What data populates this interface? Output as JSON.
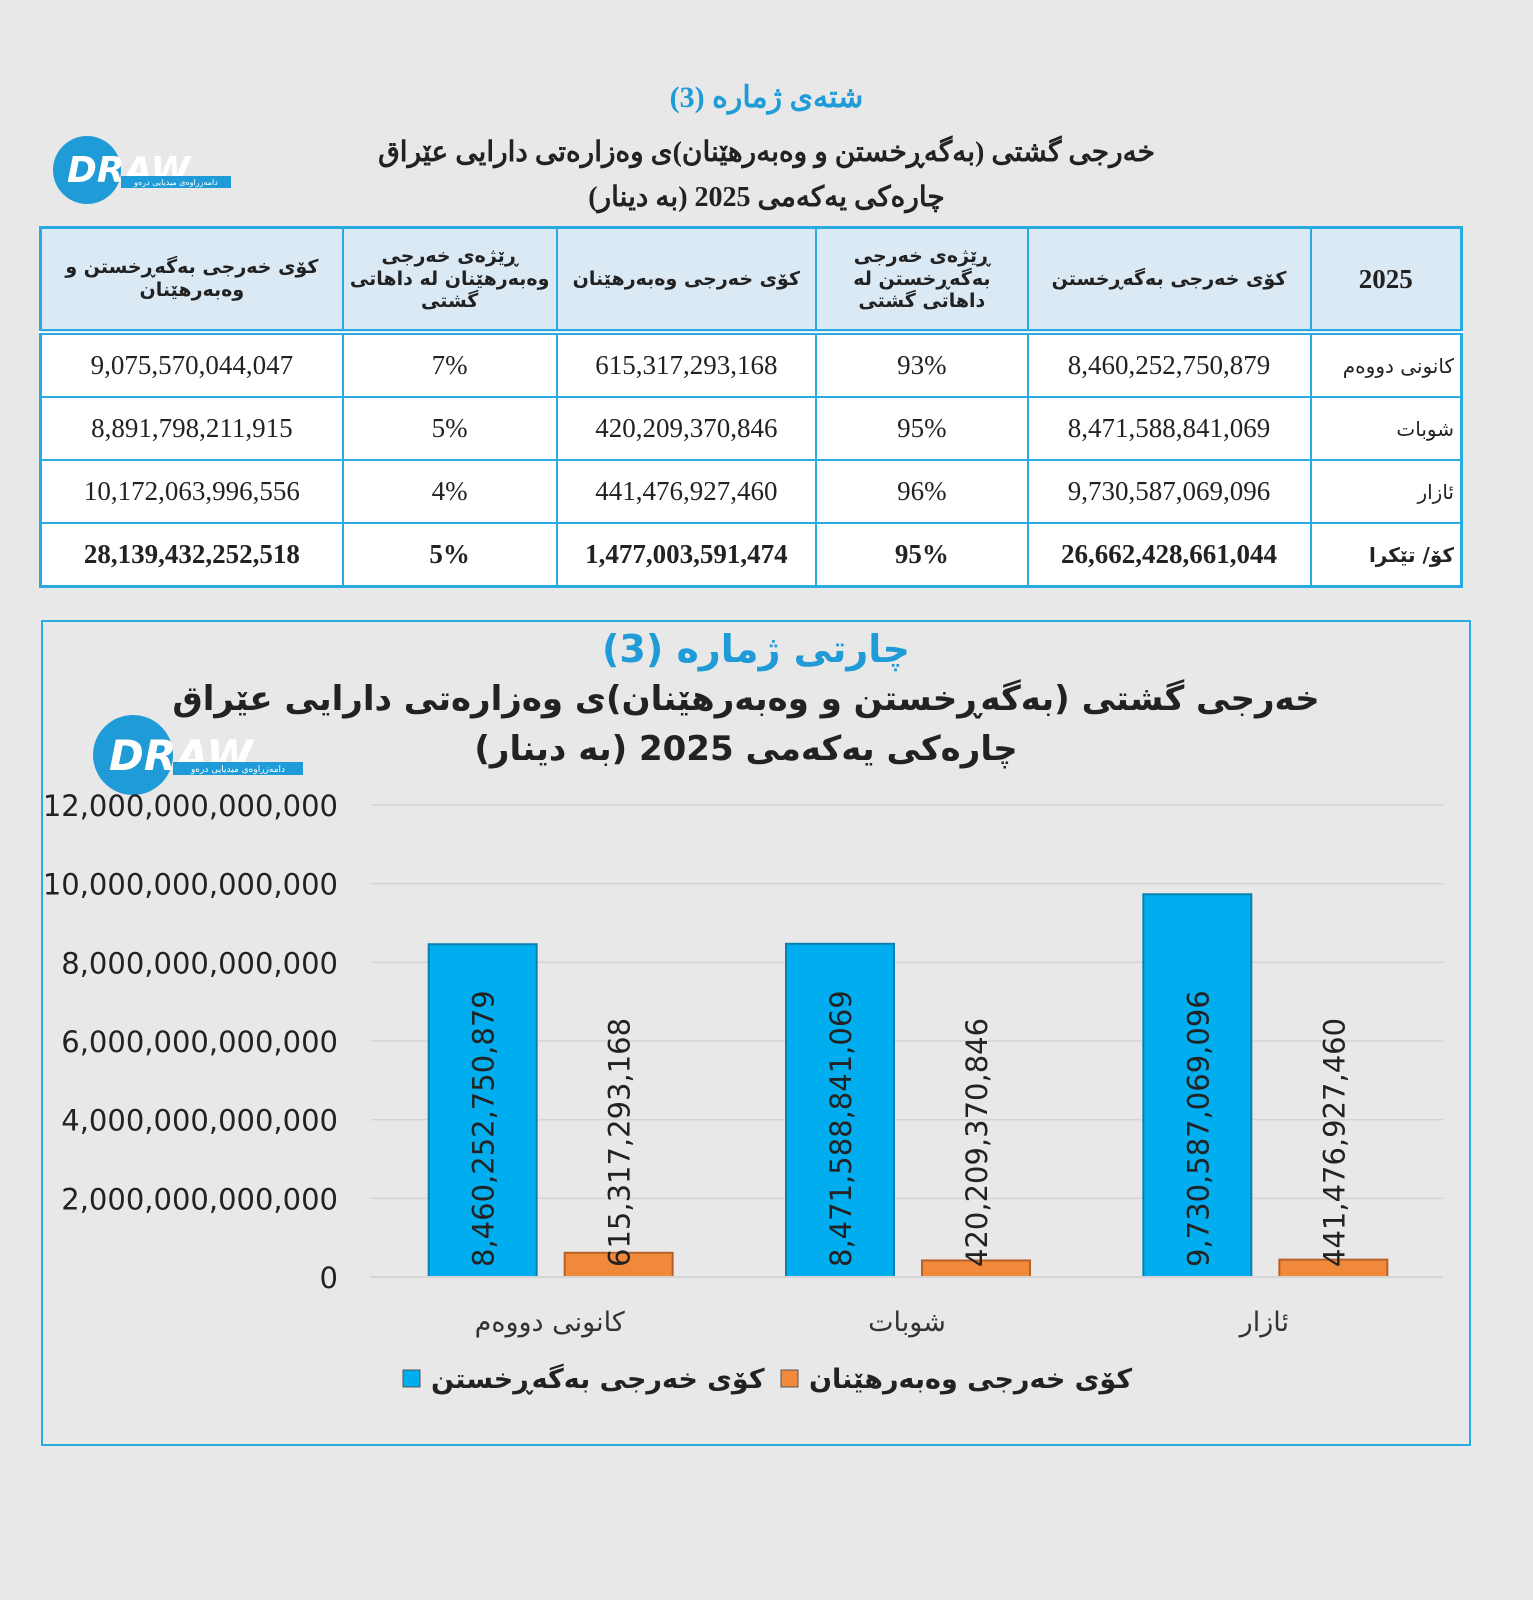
{
  "logo": {
    "name": "DRAW",
    "tagline": "دامەزراوەی میدیایی درەو"
  },
  "table": {
    "caption": "شتەی ژمارە (3)",
    "title_lines": [
      "خەرجی گشتی (بەگەڕخستن و وەبەرهێنان)ی وەزارەتی دارایی عێراق",
      "چارەکی یەکەمی 2025 (بە دینار)"
    ],
    "header": [
      "2025",
      "کۆی خەرجی بەگەڕخستن",
      "ڕێژەی خەرجی بەگەڕخستن لە داهاتی گشتی",
      "کۆی خەرجی وەبەرهێنان",
      "ڕێژەی خەرجی وەبەرهێنان لە داهاتی گشتی",
      "کۆی خەرجی بەگەڕخستن و وەبەرهێنان"
    ],
    "rows": [
      [
        "کانونی دووەم",
        "8,460,252,750,879",
        "93%",
        "615,317,293,168",
        "7%",
        "9,075,570,044,047"
      ],
      [
        "شوبات",
        "8,471,588,841,069",
        "95%",
        "420,209,370,846",
        "5%",
        "8,891,798,211,915"
      ],
      [
        "ئازار",
        "9,730,587,069,096",
        "96%",
        "441,476,927,460",
        "4%",
        "10,172,063,996,556"
      ],
      [
        "کۆ/ تێکرا",
        "26,662,428,661,044",
        "95%",
        "1,477,003,591,474",
        "5%",
        "28,139,432,252,518"
      ]
    ]
  },
  "chart_data": {
    "type": "bar",
    "caption": "چارتی ژمارە (3)",
    "title_lines": [
      "خەرجی گشتی (بەگەڕخستن و وەبەرهێنان)ی وەزارەتی دارایی عێراق",
      "چارەکی یەکەمی 2025 (بە دینار)"
    ],
    "categories": [
      "کانونی دووەم",
      "شوبات",
      "ئازار"
    ],
    "series": [
      {
        "name": "کۆی خەرجی بەگەڕخستن",
        "color": "#00aeef",
        "values": [
          8460252750879,
          8471588841069,
          9730587069096
        ],
        "value_labels": [
          "8,460,252,750,879",
          "8,471,588,841,069",
          "9,730,587,069,096"
        ]
      },
      {
        "name": "کۆی خەرجی وەبەرهێنان",
        "color": "#f0893a",
        "values": [
          615317293168,
          420209370846,
          441476927460
        ],
        "value_labels": [
          "615,317,293,168",
          "420,209,370,846",
          "441,476,927,460"
        ]
      }
    ],
    "ylim": [
      0,
      12000000000000
    ],
    "yticks": [
      0,
      {
        "value": 2000000000000,
        "label": "2,000,000,000,000"
      },
      {
        "value": 4000000000000,
        "label": "4,000,000,000,000"
      },
      {
        "value": 6000000000000,
        "label": "6,000,000,000,000"
      },
      {
        "value": 8000000000000,
        "label": "8,000,000,000,000"
      },
      {
        "value": 10000000000000,
        "label": "10,000,000,000,000"
      },
      {
        "value": 12000000000000,
        "label": "12,000,000,000,000"
      }
    ],
    "grid": true
  }
}
